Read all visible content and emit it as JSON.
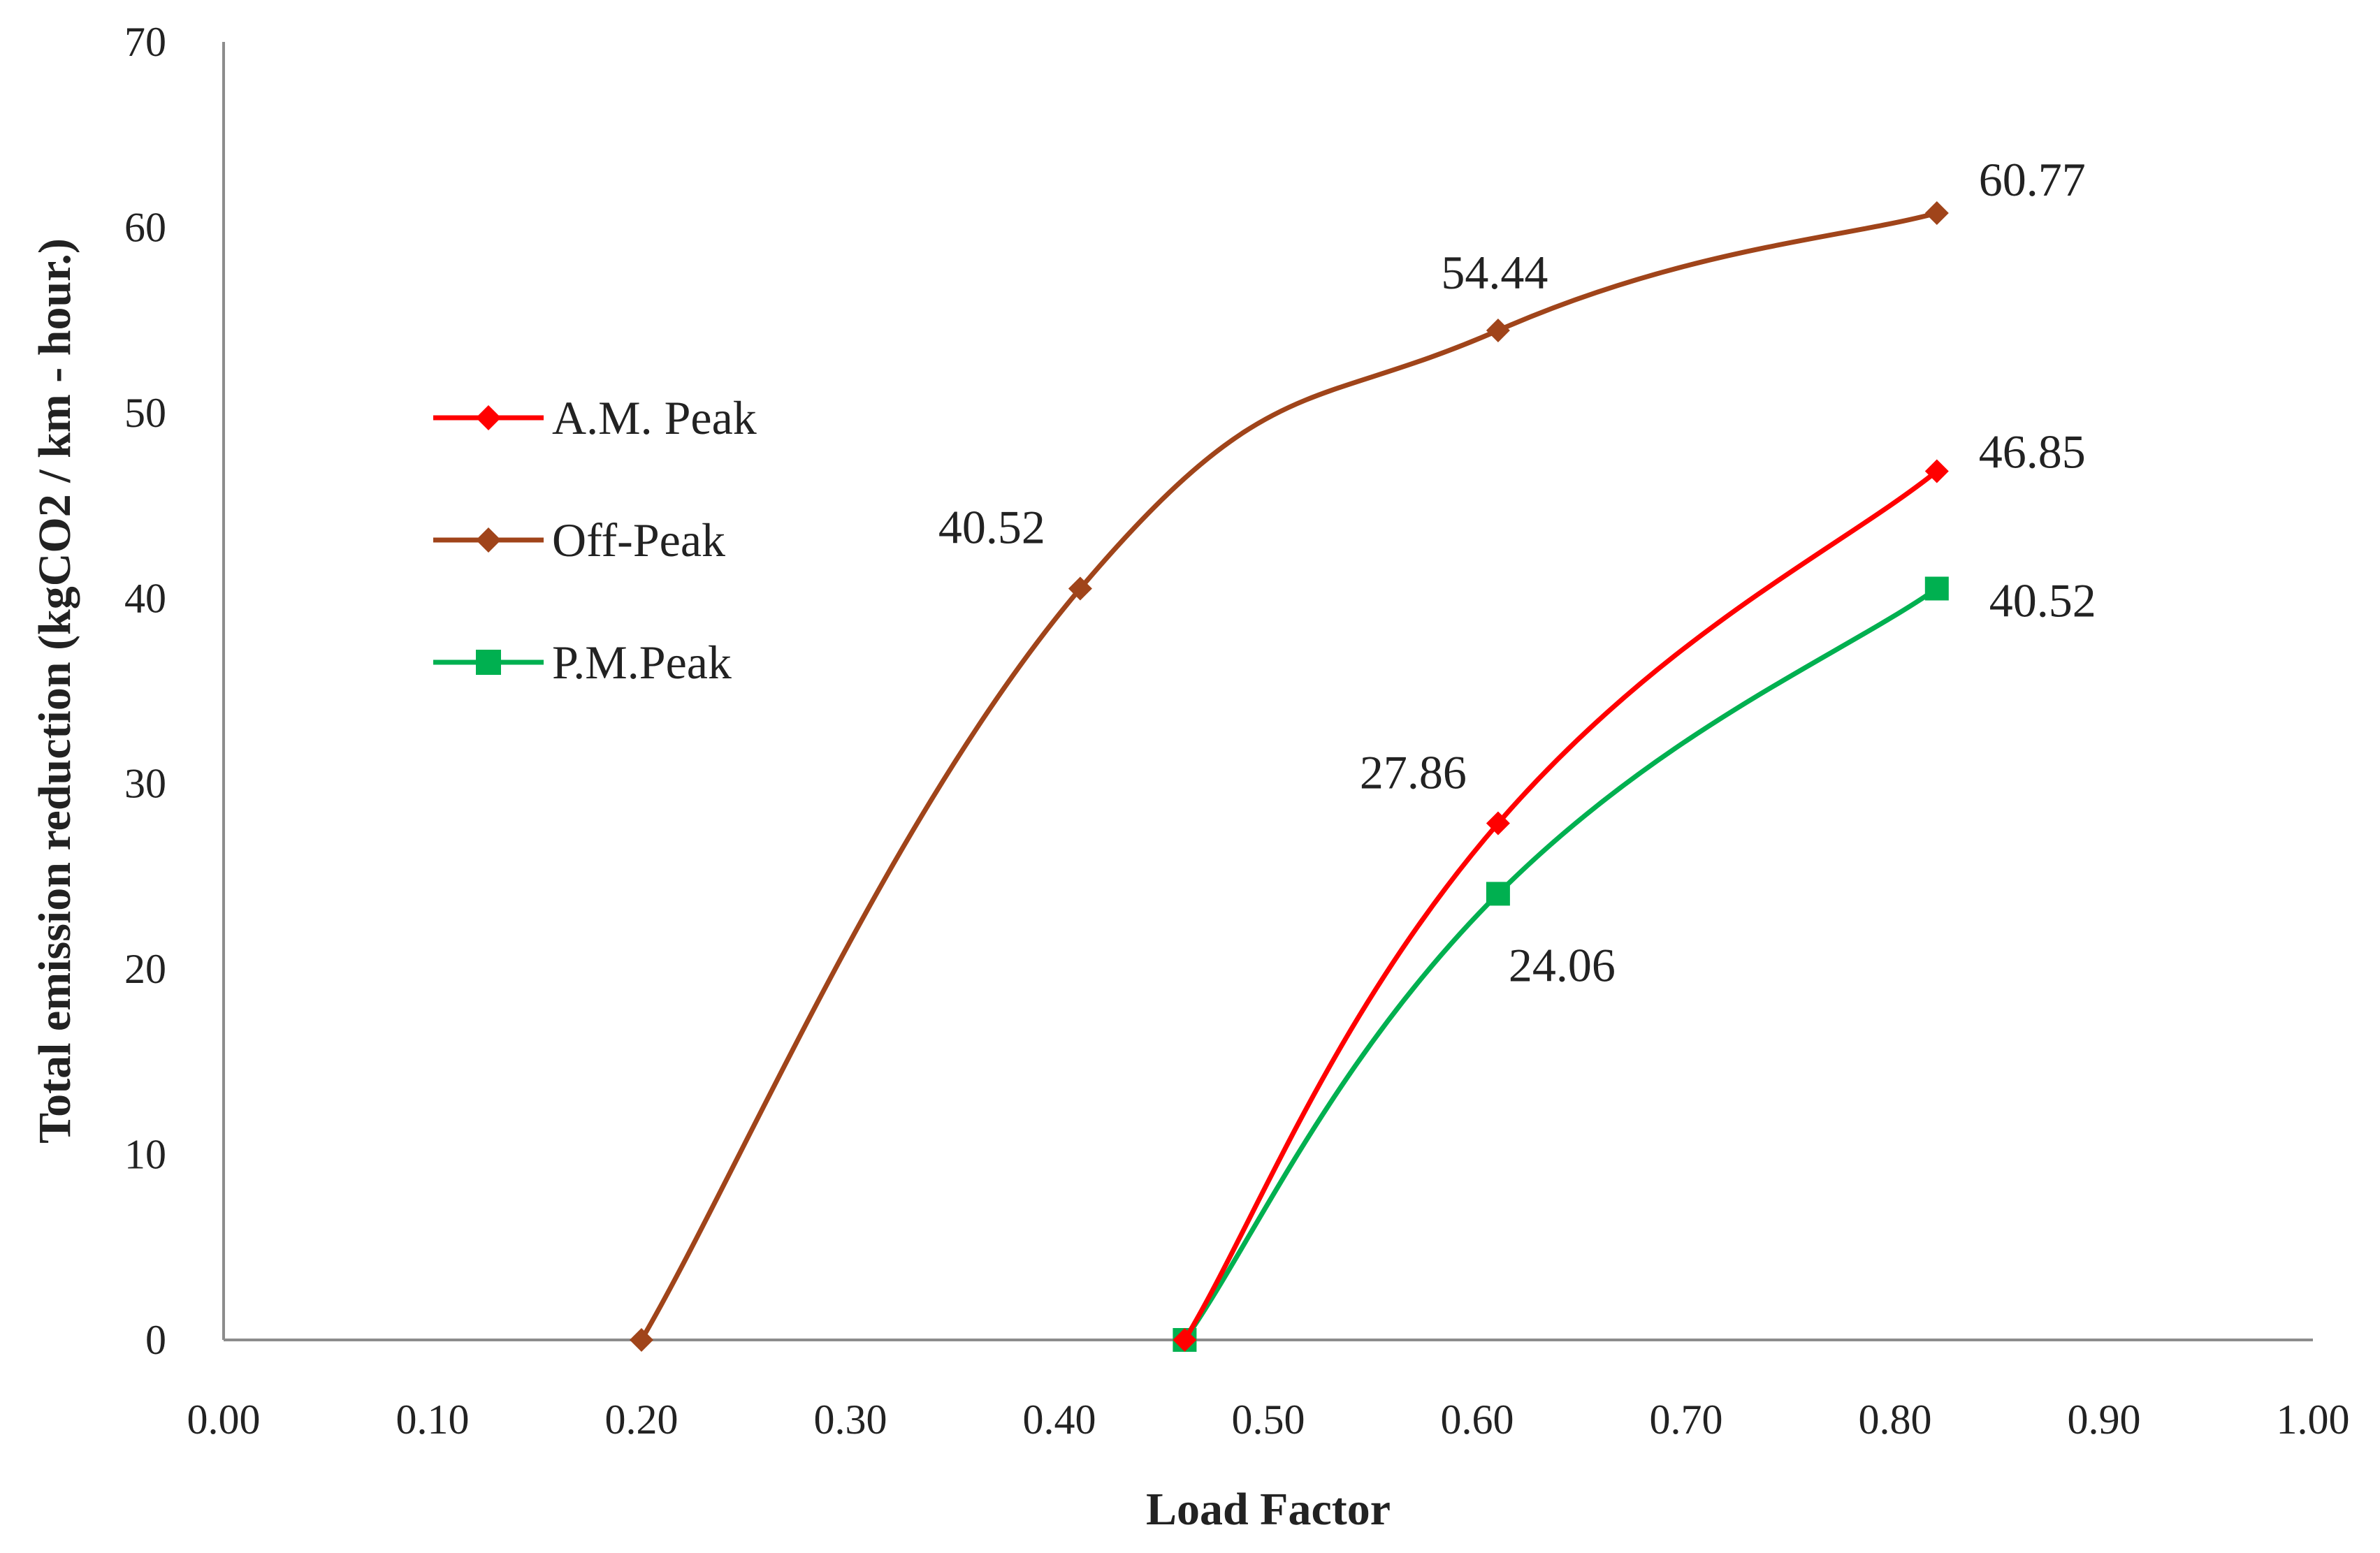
{
  "chart_data": {
    "type": "line",
    "title": "",
    "xlabel": "Load Factor",
    "ylabel": "Total emission reduction (kgCO2 / km - hour.)",
    "xlim": [
      0,
      1
    ],
    "ylim": [
      0,
      70
    ],
    "x_ticks": [
      "0.00",
      "0.10",
      "0.20",
      "0.30",
      "0.40",
      "0.50",
      "0.60",
      "0.70",
      "0.80",
      "0.90",
      "1.00"
    ],
    "y_ticks": [
      "0",
      "10",
      "20",
      "30",
      "40",
      "50",
      "60",
      "70"
    ],
    "grid": false,
    "legend_position": "left-middle",
    "series": [
      {
        "name": "A.M. Peak",
        "color": "#ff0000",
        "marker": "diamond",
        "x": [
          0.46,
          0.61,
          0.82
        ],
        "y": [
          0,
          27.86,
          46.85
        ],
        "labels": [
          null,
          "27.86",
          "46.85"
        ]
      },
      {
        "name": "Off-Peak",
        "color": "#a0441a",
        "marker": "diamond",
        "x": [
          0.2,
          0.41,
          0.61,
          0.82
        ],
        "y": [
          0,
          40.52,
          54.44,
          60.77
        ],
        "labels": [
          null,
          "40.52",
          "54.44",
          "60.77"
        ]
      },
      {
        "name": "P.M.Peak",
        "color": "#00b050",
        "marker": "square",
        "x": [
          0.46,
          0.61,
          0.82
        ],
        "y": [
          0,
          24.06,
          40.52
        ],
        "labels": [
          null,
          "24.06",
          "40.52"
        ]
      }
    ]
  }
}
